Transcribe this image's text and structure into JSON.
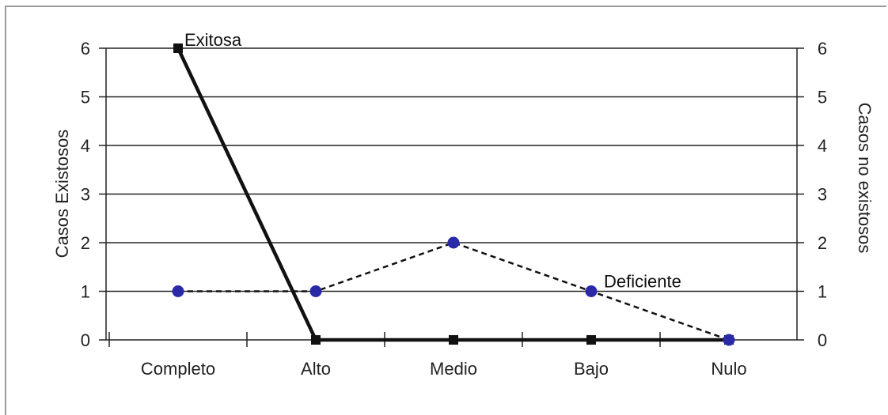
{
  "chart_data": {
    "type": "line",
    "categories": [
      "Completo",
      "Alto",
      "Medio",
      "Bajo",
      "Nulo"
    ],
    "ylabel_left": "Casos Existosos",
    "ylabel_right": "Casos no existosos",
    "ylim": [
      0,
      6
    ],
    "yticks": [
      "0",
      "1",
      "2",
      "3",
      "4",
      "5",
      "6"
    ],
    "grid": true,
    "series": [
      {
        "name": "Exitosa",
        "values": [
          6,
          0,
          0,
          0,
          0
        ],
        "axis": "left",
        "style": "solid",
        "marker": "square",
        "color": "#111111"
      },
      {
        "name": "Deficiente",
        "values": [
          1,
          1,
          2,
          1,
          0
        ],
        "axis": "right",
        "style": "dashed",
        "marker": "circle",
        "color": "#2a2aa8"
      }
    ]
  }
}
